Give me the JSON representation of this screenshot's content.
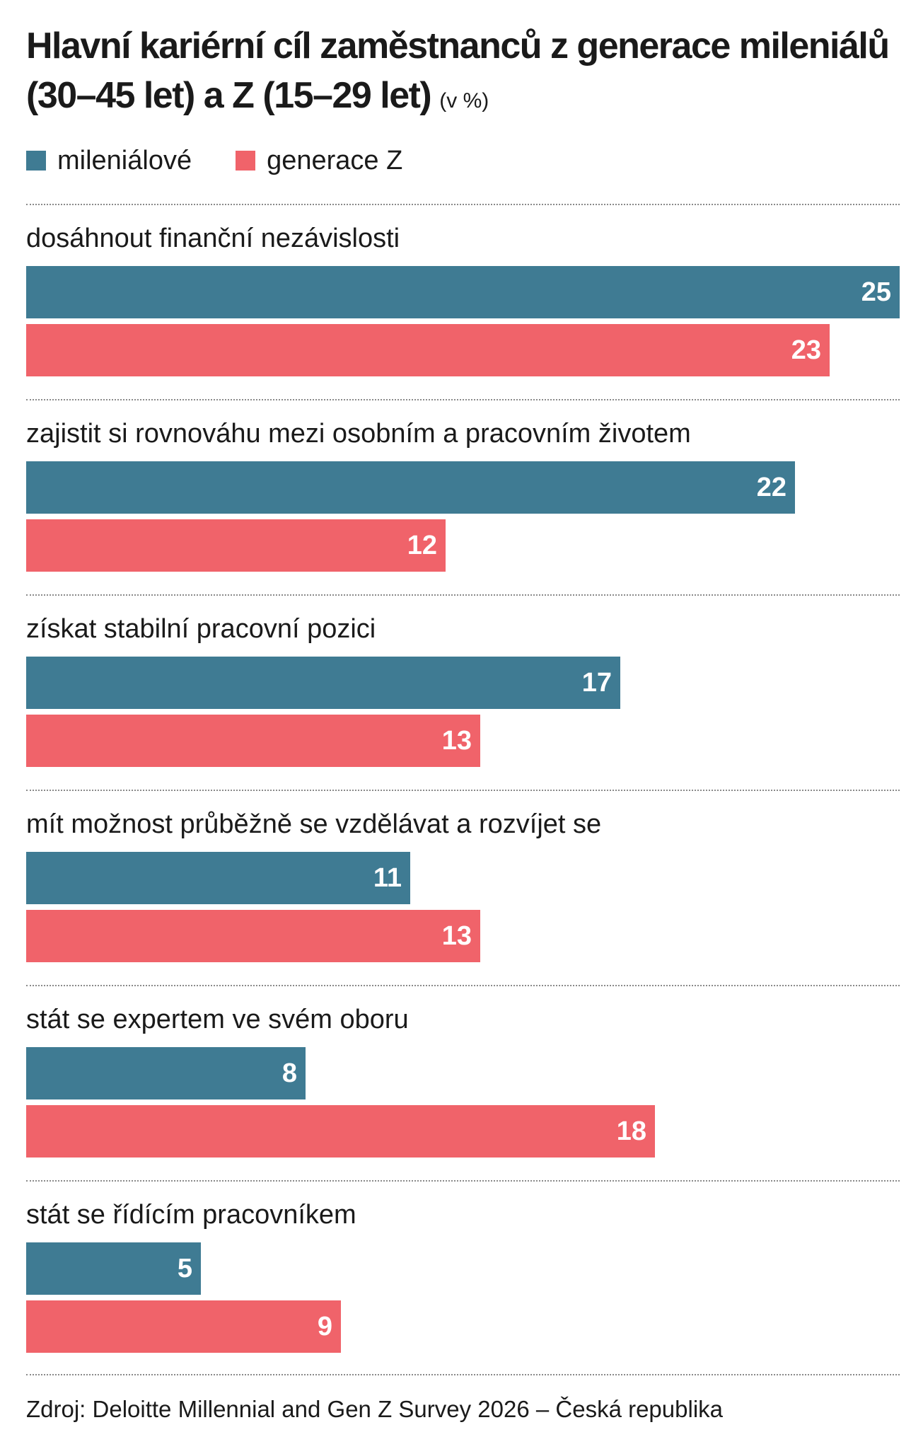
{
  "header": {
    "title": "Hlavní kariérní cíl zaměstnanců z generace mileniálů (30–45 let) a Z (15–29 let)",
    "unit": "(v %)"
  },
  "colors": {
    "millennials": "#3f7b93",
    "genz": "#f0636a"
  },
  "legend": {
    "millennials": "mileniálové",
    "genz": "generace Z"
  },
  "source": "Zdroj: Deloitte Millennial and Gen Z Survey 2026 – Česká republika",
  "chart_data": {
    "type": "bar",
    "orientation": "horizontal",
    "title": "Hlavní kariérní cíl zaměstnanců z generace mileniálů (30–45 let) a Z (15–29 let)",
    "unit": "(v %)",
    "categories": [
      "dosáhnout finanční nezávislosti",
      "zajistit si rovnováhu mezi osobním a pracovním životem",
      "získat stabilní pracovní pozici",
      "mít možnost průběžně se vzdělávat a rozvíjet se",
      "stát se expertem ve svém oboru",
      "stát se řídícím pracovníkem"
    ],
    "series": [
      {
        "name": "mileniálové",
        "values": [
          25,
          22,
          17,
          11,
          8,
          5
        ]
      },
      {
        "name": "generace Z",
        "values": [
          23,
          12,
          13,
          13,
          18,
          9
        ]
      }
    ],
    "xlim": [
      0,
      25
    ],
    "grid": false,
    "legend": "top-left"
  }
}
